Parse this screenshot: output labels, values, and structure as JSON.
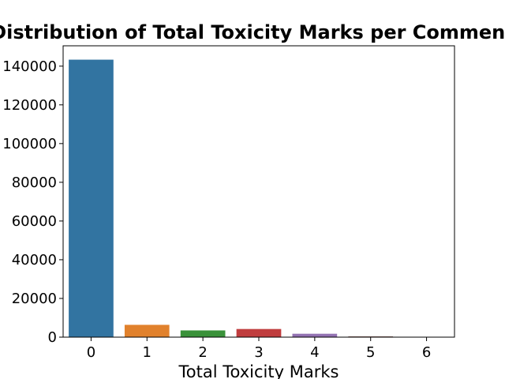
{
  "chart_data": {
    "type": "bar",
    "title": "Distribution of Total Toxicity Marks per Comment",
    "xlabel": "Total Toxicity Marks",
    "ylabel": "",
    "categories": [
      "0",
      "1",
      "2",
      "3",
      "4",
      "5",
      "6"
    ],
    "values": [
      143346,
      6360,
      3480,
      4209,
      1760,
      385,
      31
    ],
    "colors": [
      "#3274a1",
      "#e1812c",
      "#3a923a",
      "#c03d3e",
      "#9372b2",
      "#845b53",
      "#d684bd"
    ],
    "ylim": [
      0,
      150512
    ],
    "yticks": [
      0,
      20000,
      40000,
      60000,
      80000,
      100000,
      120000,
      140000
    ],
    "grid": false,
    "legend": "none"
  }
}
